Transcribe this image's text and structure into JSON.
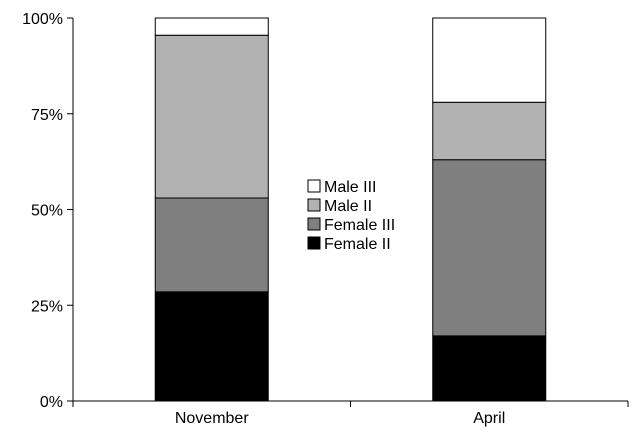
{
  "chart_data": {
    "type": "bar",
    "stacked": true,
    "percent": true,
    "categories": [
      "November",
      "April"
    ],
    "series": [
      {
        "name": "Female II",
        "color": "#000000",
        "values": [
          28.5,
          17
        ]
      },
      {
        "name": "Female III",
        "color": "#7f7f7f",
        "values": [
          24.5,
          46
        ]
      },
      {
        "name": "Male II",
        "color": "#b2b2b2",
        "values": [
          42.5,
          15
        ]
      },
      {
        "name": "Male III",
        "color": "#ffffff",
        "values": [
          4.5,
          22
        ]
      }
    ],
    "legend_order": [
      "Male III",
      "Male II",
      "Female III",
      "Female II"
    ],
    "legend_position": "center",
    "ylim": [
      0,
      100
    ],
    "yticks": [
      0,
      25,
      50,
      75,
      100
    ],
    "ytick_labels": [
      "0%",
      "25%",
      "50%",
      "75%",
      "100%"
    ],
    "title": "",
    "xlabel": "",
    "ylabel": "",
    "grid": false
  }
}
